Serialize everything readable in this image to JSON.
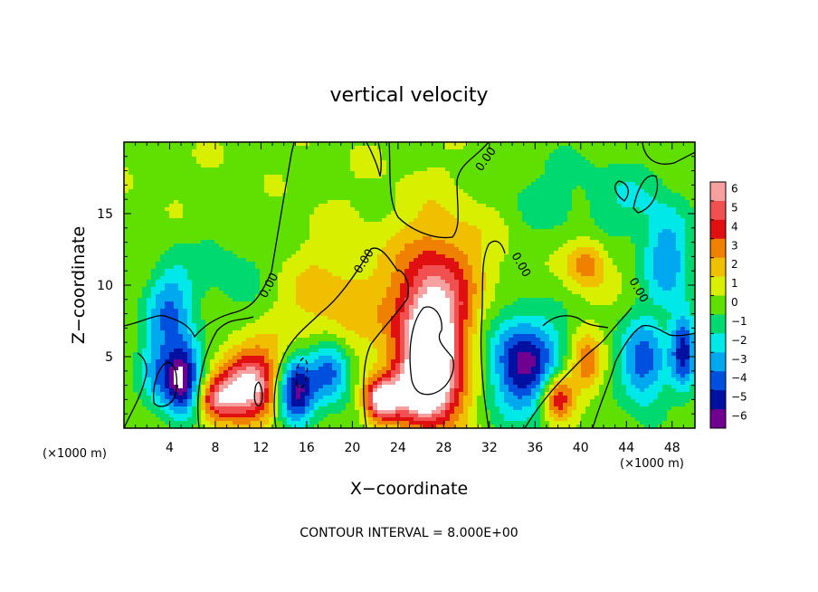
{
  "chart_data": {
    "type": "heatmap",
    "title": "vertical velocity",
    "xlabel": "X−coordinate",
    "ylabel": "Z−coordinate",
    "x_unit_left": "(×1000 m)",
    "x_unit_right": "(×1000 m)",
    "xlim": [
      0,
      50
    ],
    "ylim": [
      0,
      20
    ],
    "x_ticks": [
      4,
      8,
      12,
      16,
      20,
      24,
      28,
      32,
      36,
      40,
      44,
      48
    ],
    "y_ticks": [
      5,
      10,
      15
    ],
    "colorbar": {
      "ticks": [
        6,
        5,
        4,
        3,
        2,
        1,
        0,
        -1,
        -2,
        -3,
        -4,
        -5,
        -6
      ],
      "tick_labels": [
        "6",
        "5",
        "4",
        "3",
        "2",
        "1",
        "0",
        "−1",
        "−2",
        "−3",
        "−4",
        "−5",
        "−6"
      ],
      "colors": [
        "#f7a0a0",
        "#f05050",
        "#e01010",
        "#f08000",
        "#f0c000",
        "#d8f000",
        "#60e000",
        "#00d870",
        "#00e8e8",
        "#00a8f0",
        "#0050e0",
        "#0010a0",
        "#700090"
      ]
    },
    "contour_label": "0.00",
    "contour_interval_text": "CONTOUR INTERVAL = 8.000E+00",
    "features": [
      {
        "x": 5,
        "z": 3.5,
        "w": -7.0,
        "sx": 1.3,
        "sz": 1.8
      },
      {
        "x": 4,
        "z": 8.5,
        "w": -3.5,
        "sx": 1.5,
        "sz": 2.2
      },
      {
        "x": 2.5,
        "z": 4,
        "w": -2.0,
        "sx": 1.0,
        "sz": 2.0
      },
      {
        "x": 11,
        "z": 3.0,
        "w": 6.5,
        "sx": 2.0,
        "sz": 1.8
      },
      {
        "x": 8,
        "z": 2.0,
        "w": 4.0,
        "sx": 1.2,
        "sz": 1.0
      },
      {
        "x": 15,
        "z": 2.5,
        "w": -6.5,
        "sx": 1.2,
        "sz": 1.8
      },
      {
        "x": 18,
        "z": 4.0,
        "w": -5.0,
        "sx": 1.3,
        "sz": 1.5
      },
      {
        "x": 22.5,
        "z": 2.0,
        "w": 6.0,
        "sx": 1.0,
        "sz": 1.0
      },
      {
        "x": 27,
        "z": 6.5,
        "w": 8.0,
        "sx": 2.3,
        "sz": 3.8
      },
      {
        "x": 26,
        "z": 2.5,
        "w": 5.0,
        "sx": 2.0,
        "sz": 1.5
      },
      {
        "x": 35,
        "z": 4.5,
        "w": -6.0,
        "sx": 2.3,
        "sz": 2.5
      },
      {
        "x": 38,
        "z": 2.2,
        "w": 5.0,
        "sx": 1.0,
        "sz": 1.2
      },
      {
        "x": 40.5,
        "z": 4.5,
        "w": 3.0,
        "sx": 1.0,
        "sz": 1.5
      },
      {
        "x": 45.5,
        "z": 4.5,
        "w": -4.5,
        "sx": 1.5,
        "sz": 2.2
      },
      {
        "x": 49,
        "z": 5.5,
        "w": -5.0,
        "sx": 0.8,
        "sz": 2.0
      },
      {
        "x": 47.5,
        "z": 12,
        "w": -3.5,
        "sx": 1.5,
        "sz": 2.5
      },
      {
        "x": 40.5,
        "z": 11.5,
        "w": 3.0,
        "sx": 1.3,
        "sz": 1.3
      },
      {
        "x": 18,
        "z": 8.5,
        "w": 1.8,
        "sx": 4.0,
        "sz": 3.0
      },
      {
        "x": 10,
        "z": 11,
        "w": -1.3,
        "sx": 3.0,
        "sz": 3.0
      },
      {
        "x": 30,
        "z": 13,
        "w": 1.2,
        "sx": 4.0,
        "sz": 3.0
      },
      {
        "x": 36,
        "z": 16,
        "w": -1.2,
        "sx": 4.0,
        "sz": 3.0
      },
      {
        "x": 44,
        "z": 16,
        "w": -1.5,
        "sx": 2.5,
        "sz": 2.0
      }
    ]
  }
}
